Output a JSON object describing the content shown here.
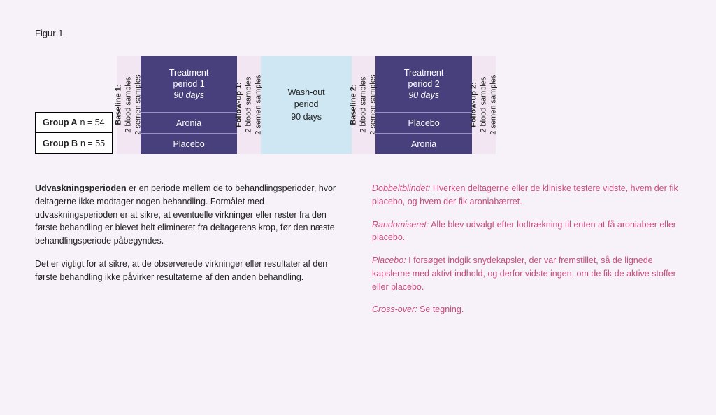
{
  "figure_title": "Figur 1",
  "groups": {
    "a": {
      "label": "Group A",
      "n": "n = 54"
    },
    "b": {
      "label": "Group B",
      "n": "n = 55"
    }
  },
  "vcols": {
    "baseline1": {
      "title": "Baseline 1:",
      "line1": "2 blood samples",
      "line2": "2 semen samples"
    },
    "followup1": {
      "title": "Follow-up 1:",
      "line1": "2 blood samples",
      "line2": "2 semen samples"
    },
    "baseline2": {
      "title": "Baseline 2:",
      "line1": "2 blood samples",
      "line2": "2 semen samples"
    },
    "followup2": {
      "title": "Follow-up 2:",
      "line1": "2 blood samples",
      "line2": "2 semen samples"
    }
  },
  "treatment1": {
    "title_line1": "Treatment",
    "title_line2": "period 1",
    "days": "90 days",
    "row_a": "Aronia",
    "row_b": "Placebo"
  },
  "treatment2": {
    "title_line1": "Treatment",
    "title_line2": "period 2",
    "days": "90 days",
    "row_a": "Placebo",
    "row_b": "Aronia"
  },
  "washout": {
    "line1": "Wash-out",
    "line2": "period",
    "line3": "90 days"
  },
  "colors": {
    "page_bg": "#f7f2f9",
    "vcol_bg": "#f3e6f3",
    "treat_bg": "#47407d",
    "treat_divider": "#9a94c4",
    "washout_bg": "#cfe7f3",
    "right_text": "#c94b7c"
  },
  "left_text": {
    "p1_bold": "Udvaskningsperioden",
    "p1_rest": " er en periode mellem de to behandlingsperioder, hvor deltagerne ikke modtager nogen behandling. Formålet med udvaskningsperioden er at sikre, at eventuelle virkninger eller rester fra den første behandling er blevet helt elimineret fra deltagerens krop, før den næste behandlingsperiode påbegyndes.",
    "p2": "Det er vigtigt for at sikre, at de observerede virkninger eller resultater af den første behandling ikke påvirker resultaterne af den anden behandling."
  },
  "right_text": {
    "p1_term": "Dobbeltblindet:",
    "p1_rest": " Hverken deltagerne eller de kliniske testere vidste, hvem der fik placebo, og hvem der fik aroniabærret.",
    "p2_term": "Randomiseret:",
    "p2_rest": " Alle blev udvalgt efter lodtrækning til enten at få aroniabær eller placebo.",
    "p3_term": "Placebo:",
    "p3_rest": " I forsøget indgik snydekapsler, der var fremstillet, så de lignede kapslerne med aktivt indhold, og derfor vidste ingen, om de fik de aktive stoffer eller placebo.",
    "p4_term": "Cross-over:",
    "p4_rest": " Se tegning."
  }
}
